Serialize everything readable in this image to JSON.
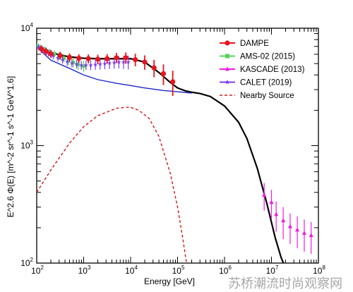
{
  "chart_data": {
    "type": "line",
    "xscale": "log",
    "yscale": "log",
    "xlim": [
      100,
      100000000
    ],
    "ylim": [
      100,
      10000
    ],
    "xlabel": "Energy [GeV]",
    "ylabel": "E^2.6 Φ(E)  [m^-2 sr^-1 s^-1 GeV^1.6]",
    "x_tick_labels": [
      {
        "value": 100,
        "base": "10",
        "exp": "2"
      },
      {
        "value": 1000,
        "base": "10",
        "exp": "3"
      },
      {
        "value": 10000,
        "base": "10",
        "exp": "4"
      },
      {
        "value": 100000,
        "base": "10",
        "exp": "5"
      },
      {
        "value": 1000000,
        "base": "10",
        "exp": "6"
      },
      {
        "value": 10000000,
        "base": "10",
        "exp": "7"
      },
      {
        "value": 100000000,
        "base": "10",
        "exp": "8"
      }
    ],
    "y_tick_labels": [
      {
        "value": 100,
        "base": "10",
        "exp": "2"
      },
      {
        "value": 1000,
        "base": "10",
        "exp": "3"
      },
      {
        "value": 10000,
        "base": "10",
        "exp": "4"
      }
    ],
    "legend_position": "top-right",
    "legend": [
      {
        "label": "DAMPE",
        "color": "#e8141c",
        "marker": "circle",
        "style": "solid"
      },
      {
        "label": "AMS-02 (2015)",
        "color": "#54d454",
        "marker": "square",
        "style": "solid"
      },
      {
        "label": "KASCADE (2013)",
        "color": "#f01ae6",
        "marker": "triangle",
        "style": "solid"
      },
      {
        "label": "CALET (2019)",
        "color": "#7a3cf0",
        "marker": "star",
        "style": "solid"
      },
      {
        "label": "Nearby Source",
        "color": "#d61a1a",
        "marker": "none",
        "style": "dashed"
      }
    ],
    "series": [
      {
        "name": "DAMPE",
        "color": "#e8141c",
        "points": [
          {
            "x": 126,
            "y": 6650,
            "yerr": 500
          },
          {
            "x": 158,
            "y": 6350,
            "yerr": 480
          },
          {
            "x": 200,
            "y": 6050,
            "yerr": 460
          },
          {
            "x": 316,
            "y": 5850,
            "yerr": 450
          },
          {
            "x": 500,
            "y": 5650,
            "yerr": 450
          },
          {
            "x": 790,
            "y": 5550,
            "yerr": 460
          },
          {
            "x": 1260,
            "y": 5500,
            "yerr": 480
          },
          {
            "x": 2000,
            "y": 5450,
            "yerr": 500
          },
          {
            "x": 3160,
            "y": 5500,
            "yerr": 520
          },
          {
            "x": 5000,
            "y": 5600,
            "yerr": 560
          },
          {
            "x": 7900,
            "y": 5600,
            "yerr": 620
          },
          {
            "x": 12600,
            "y": 5400,
            "yerr": 660
          },
          {
            "x": 20000,
            "y": 5150,
            "yerr": 720
          },
          {
            "x": 31600,
            "y": 4600,
            "yerr": 780
          },
          {
            "x": 50000,
            "y": 4100,
            "yerr": 820
          },
          {
            "x": 79000,
            "y": 3500,
            "yerr": 850
          }
        ]
      },
      {
        "name": "AMS-02 (2015)",
        "color": "#54d454",
        "points": [
          {
            "x": 100,
            "y": 7100,
            "yerr": 350
          },
          {
            "x": 120,
            "y": 6900,
            "yerr": 350
          },
          {
            "x": 150,
            "y": 6600,
            "yerr": 360
          },
          {
            "x": 190,
            "y": 6300,
            "yerr": 380
          },
          {
            "x": 240,
            "y": 6050,
            "yerr": 400
          },
          {
            "x": 300,
            "y": 5800,
            "yerr": 420
          },
          {
            "x": 380,
            "y": 5550,
            "yerr": 440
          },
          {
            "x": 480,
            "y": 5300,
            "yerr": 460
          },
          {
            "x": 600,
            "y": 5100,
            "yerr": 480
          },
          {
            "x": 760,
            "y": 4900,
            "yerr": 500
          },
          {
            "x": 1000,
            "y": 4750,
            "yerr": 520
          }
        ]
      },
      {
        "name": "KASCADE (2013)",
        "color": "#f01ae6",
        "points": [
          {
            "x": 7000000,
            "y": 380,
            "yerr": 100
          },
          {
            "x": 10000000,
            "y": 330,
            "yerr": 90
          },
          {
            "x": 12600000,
            "y": 260,
            "yerr": 75
          },
          {
            "x": 17800000,
            "y": 230,
            "yerr": 70
          },
          {
            "x": 25000000,
            "y": 205,
            "yerr": 60
          },
          {
            "x": 35500000,
            "y": 192,
            "yerr": 58
          },
          {
            "x": 50000000,
            "y": 180,
            "yerr": 55
          },
          {
            "x": 70000000,
            "y": 172,
            "yerr": 52
          }
        ]
      },
      {
        "name": "CALET (2019)",
        "color": "#7a3cf0",
        "points": [
          {
            "x": 110,
            "y": 6900,
            "yerr": 450
          },
          {
            "x": 140,
            "y": 6500,
            "yerr": 430
          },
          {
            "x": 178,
            "y": 6150,
            "yerr": 420
          },
          {
            "x": 224,
            "y": 5850,
            "yerr": 410
          },
          {
            "x": 282,
            "y": 5600,
            "yerr": 400
          },
          {
            "x": 355,
            "y": 5400,
            "yerr": 400
          },
          {
            "x": 447,
            "y": 5200,
            "yerr": 400
          },
          {
            "x": 562,
            "y": 5050,
            "yerr": 410
          },
          {
            "x": 708,
            "y": 4950,
            "yerr": 420
          },
          {
            "x": 891,
            "y": 4850,
            "yerr": 430
          },
          {
            "x": 1122,
            "y": 4850,
            "yerr": 450
          },
          {
            "x": 1413,
            "y": 4850,
            "yerr": 460
          },
          {
            "x": 1778,
            "y": 4900,
            "yerr": 480
          },
          {
            "x": 2239,
            "y": 4950,
            "yerr": 500
          },
          {
            "x": 2818,
            "y": 5000,
            "yerr": 520
          },
          {
            "x": 3548,
            "y": 5050,
            "yerr": 550
          },
          {
            "x": 4467,
            "y": 5100,
            "yerr": 580
          },
          {
            "x": 5623,
            "y": 5150,
            "yerr": 610
          },
          {
            "x": 7079,
            "y": 5150,
            "yerr": 650
          },
          {
            "x": 8913,
            "y": 5150,
            "yerr": 690
          }
        ]
      }
    ],
    "lines": [
      {
        "name": "total model",
        "color": "#000000",
        "style": "solid",
        "points": [
          [
            100,
            7200
          ],
          [
            150,
            6550
          ],
          [
            200,
            6200
          ],
          [
            300,
            5950
          ],
          [
            500,
            5700
          ],
          [
            1000,
            5550
          ],
          [
            2000,
            5500
          ],
          [
            4000,
            5500
          ],
          [
            10000,
            5500
          ],
          [
            20000,
            5150
          ],
          [
            40000,
            4200
          ],
          [
            70000,
            3450
          ],
          [
            100000,
            3100
          ],
          [
            150000,
            2920
          ],
          [
            200000,
            2850
          ],
          [
            300000,
            2780
          ],
          [
            500000,
            2620
          ],
          [
            1000000,
            2180
          ],
          [
            2000000,
            1580
          ],
          [
            3000000,
            1150
          ],
          [
            5000000,
            640
          ],
          [
            8000000,
            320
          ],
          [
            12000000,
            165
          ],
          [
            16000000,
            112
          ],
          [
            18000000,
            100
          ]
        ]
      },
      {
        "name": "background model",
        "color": "#1e28c8",
        "style": "solid",
        "points": [
          [
            100,
            6900
          ],
          [
            200,
            5350
          ],
          [
            500,
            4550
          ],
          [
            1000,
            4000
          ],
          [
            2000,
            3650
          ],
          [
            5000,
            3400
          ],
          [
            10000,
            3250
          ],
          [
            20000,
            3100
          ],
          [
            50000,
            2950
          ],
          [
            100000,
            2880
          ],
          [
            200000,
            2800
          ]
        ]
      },
      {
        "name": "Nearby Source",
        "color": "#d61a1a",
        "style": "dashed",
        "points": [
          [
            100,
            400
          ],
          [
            200,
            620
          ],
          [
            500,
            1050
          ],
          [
            1000,
            1450
          ],
          [
            2000,
            1800
          ],
          [
            5000,
            2080
          ],
          [
            8000,
            2120
          ],
          [
            10000,
            2120
          ],
          [
            15000,
            2000
          ],
          [
            25000,
            1700
          ],
          [
            40000,
            1200
          ],
          [
            70000,
            580
          ],
          [
            100000,
            300
          ],
          [
            130000,
            160
          ],
          [
            155000,
            100
          ]
        ]
      }
    ]
  },
  "watermark": "苏桥潮流时尚观察网"
}
